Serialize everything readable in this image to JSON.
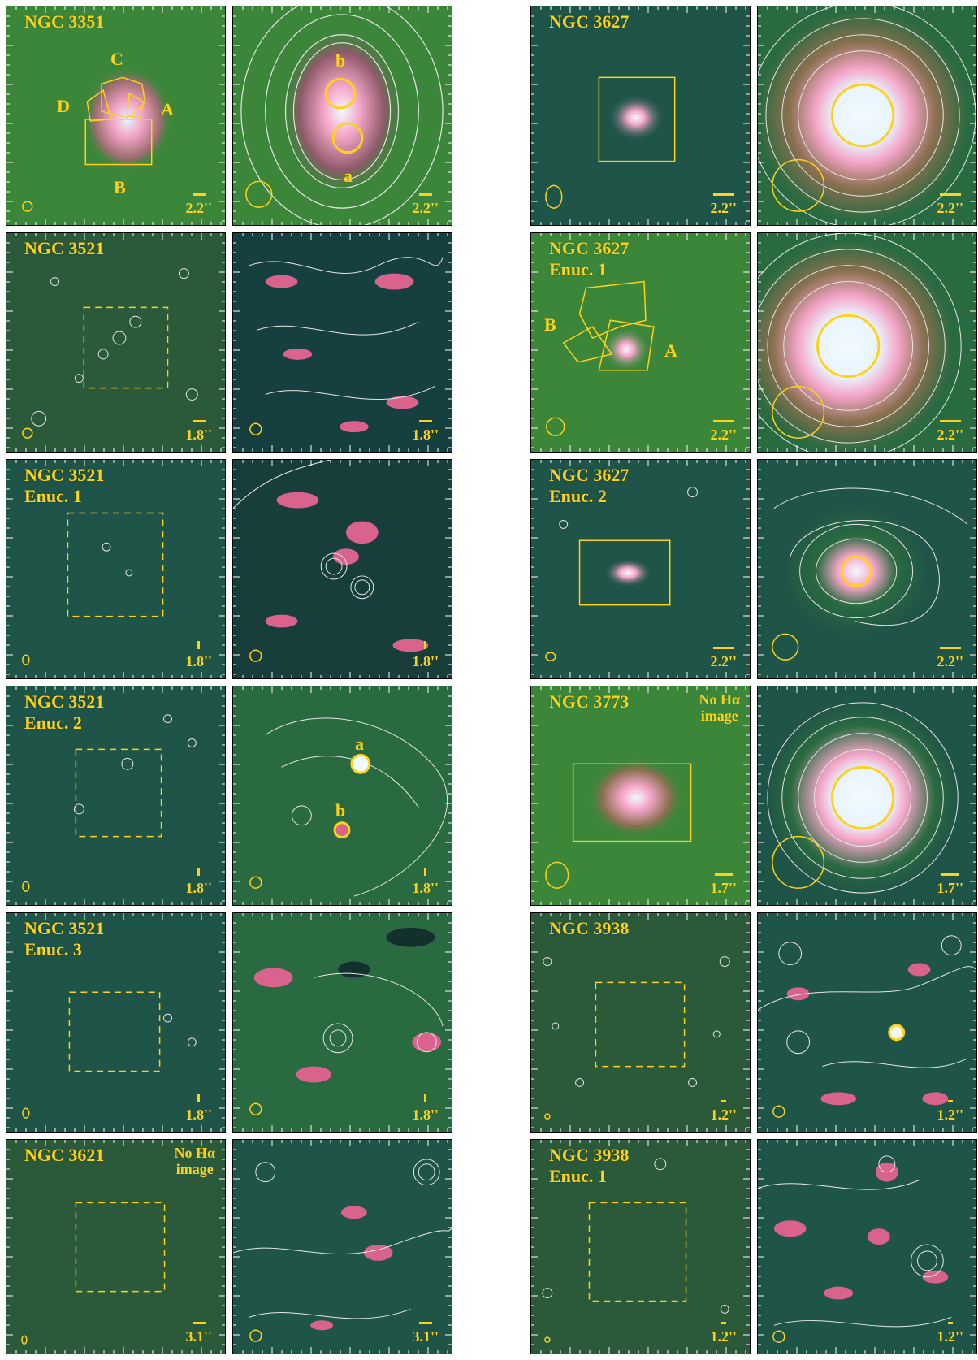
{
  "colors": {
    "annotation": "#ffd21a",
    "contour": "#e6e6e6",
    "background_green": "#2f7a35",
    "background_teal": "#0f3a3a",
    "peak": "#f4a6c8"
  },
  "panels": [
    {
      "name": "NGC 3351",
      "scale": "2.2''",
      "labels": [
        "C",
        "D",
        "A",
        "B"
      ],
      "zoom_labels": [
        "b",
        "a"
      ],
      "zoom_scale": "2.2''"
    },
    {
      "name": "NGC 3627",
      "scale": "2.2''",
      "zoom_scale": "2.2''"
    },
    {
      "name": "NGC 3521",
      "scale": "1.8''",
      "zoom_scale": "1.8''"
    },
    {
      "name": "NGC 3627\nEnuc. 1",
      "scale": "2.2''",
      "labels": [
        "B",
        "A"
      ],
      "zoom_scale": "2.2''"
    },
    {
      "name": "NGC 3521\nEnuc. 1",
      "scale": "1.8''",
      "zoom_scale": "1.8''"
    },
    {
      "name": "NGC 3627\nEnuc. 2",
      "scale": "2.2''",
      "zoom_scale": "2.2''"
    },
    {
      "name": "NGC 3521\nEnuc. 2",
      "scale": "1.8''",
      "zoom_labels": [
        "a",
        "b"
      ],
      "zoom_scale": "1.8''"
    },
    {
      "name": "NGC 3773",
      "note": "No Hα\nimage",
      "scale": "1.7''",
      "zoom_scale": "1.7''"
    },
    {
      "name": "NGC 3521\nEnuc. 3",
      "scale": "1.8''",
      "zoom_scale": "1.8''"
    },
    {
      "name": "NGC 3938",
      "scale": "1.2''",
      "zoom_scale": "1.2''"
    },
    {
      "name": "NGC 3621",
      "note": "No Hα\nimage",
      "scale": "3.1''",
      "zoom_scale": "3.1''"
    },
    {
      "name": "NGC 3938\nEnuc. 1",
      "scale": "1.2''",
      "zoom_scale": "1.2''"
    }
  ]
}
